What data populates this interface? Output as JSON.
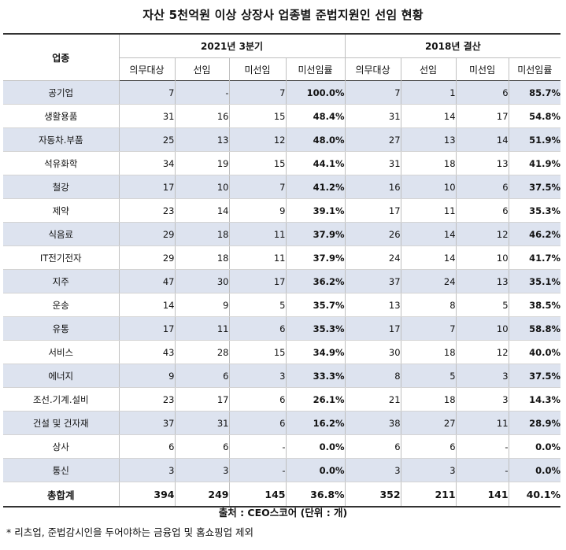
{
  "title": "자산 5천억원 이상 상장사 업종별 준법지원인 선임 현황",
  "header": {
    "category": "업종",
    "period1": "2021년 3분기",
    "period2": "2018년 결산",
    "columns": [
      "의무대상",
      "선임",
      "미선임",
      "미선임률",
      "의무대상",
      "선임",
      "미선임",
      "미선임률"
    ]
  },
  "rows": [
    {
      "name": "공기업",
      "v": [
        "7",
        "-",
        "7",
        "100.0%",
        "7",
        "1",
        "6",
        "85.7%"
      ]
    },
    {
      "name": "생활용품",
      "v": [
        "31",
        "16",
        "15",
        "48.4%",
        "31",
        "14",
        "17",
        "54.8%"
      ]
    },
    {
      "name": "자동차.부품",
      "v": [
        "25",
        "13",
        "12",
        "48.0%",
        "27",
        "13",
        "14",
        "51.9%"
      ]
    },
    {
      "name": "석유화학",
      "v": [
        "34",
        "19",
        "15",
        "44.1%",
        "31",
        "18",
        "13",
        "41.9%"
      ]
    },
    {
      "name": "철강",
      "v": [
        "17",
        "10",
        "7",
        "41.2%",
        "16",
        "10",
        "6",
        "37.5%"
      ]
    },
    {
      "name": "제약",
      "v": [
        "23",
        "14",
        "9",
        "39.1%",
        "17",
        "11",
        "6",
        "35.3%"
      ]
    },
    {
      "name": "식음료",
      "v": [
        "29",
        "18",
        "11",
        "37.9%",
        "26",
        "14",
        "12",
        "46.2%"
      ]
    },
    {
      "name": "IT전기전자",
      "v": [
        "29",
        "18",
        "11",
        "37.9%",
        "24",
        "14",
        "10",
        "41.7%"
      ]
    },
    {
      "name": "지주",
      "v": [
        "47",
        "30",
        "17",
        "36.2%",
        "37",
        "24",
        "13",
        "35.1%"
      ]
    },
    {
      "name": "운송",
      "v": [
        "14",
        "9",
        "5",
        "35.7%",
        "13",
        "8",
        "5",
        "38.5%"
      ]
    },
    {
      "name": "유통",
      "v": [
        "17",
        "11",
        "6",
        "35.3%",
        "17",
        "7",
        "10",
        "58.8%"
      ]
    },
    {
      "name": "서비스",
      "v": [
        "43",
        "28",
        "15",
        "34.9%",
        "30",
        "18",
        "12",
        "40.0%"
      ]
    },
    {
      "name": "에너지",
      "v": [
        "9",
        "6",
        "3",
        "33.3%",
        "8",
        "5",
        "3",
        "37.5%"
      ]
    },
    {
      "name": "조선.기계.설비",
      "v": [
        "23",
        "17",
        "6",
        "26.1%",
        "21",
        "18",
        "3",
        "14.3%"
      ]
    },
    {
      "name": "건설 및 건자재",
      "v": [
        "37",
        "31",
        "6",
        "16.2%",
        "38",
        "27",
        "11",
        "28.9%"
      ]
    },
    {
      "name": "상사",
      "v": [
        "6",
        "6",
        "-",
        "0.0%",
        "6",
        "6",
        "-",
        "0.0%"
      ]
    },
    {
      "name": "통신",
      "v": [
        "3",
        "3",
        "-",
        "0.0%",
        "3",
        "3",
        "-",
        "0.0%"
      ]
    }
  ],
  "total": {
    "name": "총합계",
    "v": [
      "394",
      "249",
      "145",
      "36.8%",
      "352",
      "211",
      "141",
      "40.1%"
    ]
  },
  "source": "출처 : CEO스코어 (단위 : 개)",
  "note": "* 리츠업, 준법감시인을 두어야하는 금융업 및 홈쇼핑업 제외",
  "colors": {
    "row_shade": "#dde3ef",
    "border_dark": "#333333",
    "border_light": "#bfbfbf"
  }
}
